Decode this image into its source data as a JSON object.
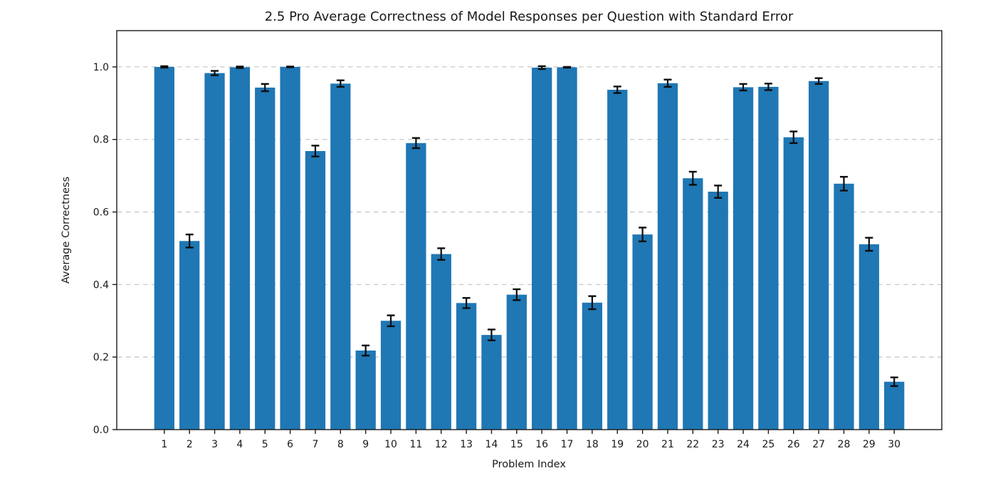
{
  "chart_data": {
    "type": "bar",
    "title": "2.5 Pro Average Correctness of Model Responses per Question with Standard Error",
    "xlabel": "Problem Index",
    "ylabel": "Average Correctness",
    "categories": [
      "1",
      "2",
      "3",
      "4",
      "5",
      "6",
      "7",
      "8",
      "9",
      "10",
      "11",
      "12",
      "13",
      "14",
      "15",
      "16",
      "17",
      "18",
      "19",
      "20",
      "21",
      "22",
      "23",
      "24",
      "25",
      "26",
      "27",
      "28",
      "29",
      "30"
    ],
    "values": [
      1.0,
      0.52,
      0.983,
      0.999,
      0.943,
      1.0,
      0.768,
      0.954,
      0.218,
      0.3,
      0.79,
      0.484,
      0.349,
      0.261,
      0.372,
      0.998,
      0.999,
      0.35,
      0.937,
      0.538,
      0.955,
      0.693,
      0.656,
      0.944,
      0.945,
      0.806,
      0.961,
      0.678,
      0.511,
      0.132
    ],
    "std_errors": [
      0.002,
      0.018,
      0.006,
      0.002,
      0.01,
      0.001,
      0.015,
      0.009,
      0.014,
      0.015,
      0.014,
      0.016,
      0.014,
      0.015,
      0.015,
      0.004,
      0.001,
      0.018,
      0.009,
      0.019,
      0.01,
      0.018,
      0.017,
      0.009,
      0.009,
      0.016,
      0.008,
      0.019,
      0.018,
      0.012
    ],
    "ylim": [
      0,
      1.1
    ],
    "yticks": [
      0.0,
      0.2,
      0.4,
      0.6,
      0.8,
      1.0
    ],
    "ytick_labels": [
      "0.0",
      "0.2",
      "0.4",
      "0.6",
      "0.8",
      "1.0"
    ],
    "grid": "horizontal, dashed, at yticks, gridline at 1.0 visible",
    "legend": null,
    "colors": {
      "bar": "#1f77b4",
      "error_bar": "#0d0d0d",
      "grid_line": "#c8c8c8",
      "spine": "#1a1a1a",
      "text": "#1a1a1a",
      "background": "#ffffff"
    }
  }
}
